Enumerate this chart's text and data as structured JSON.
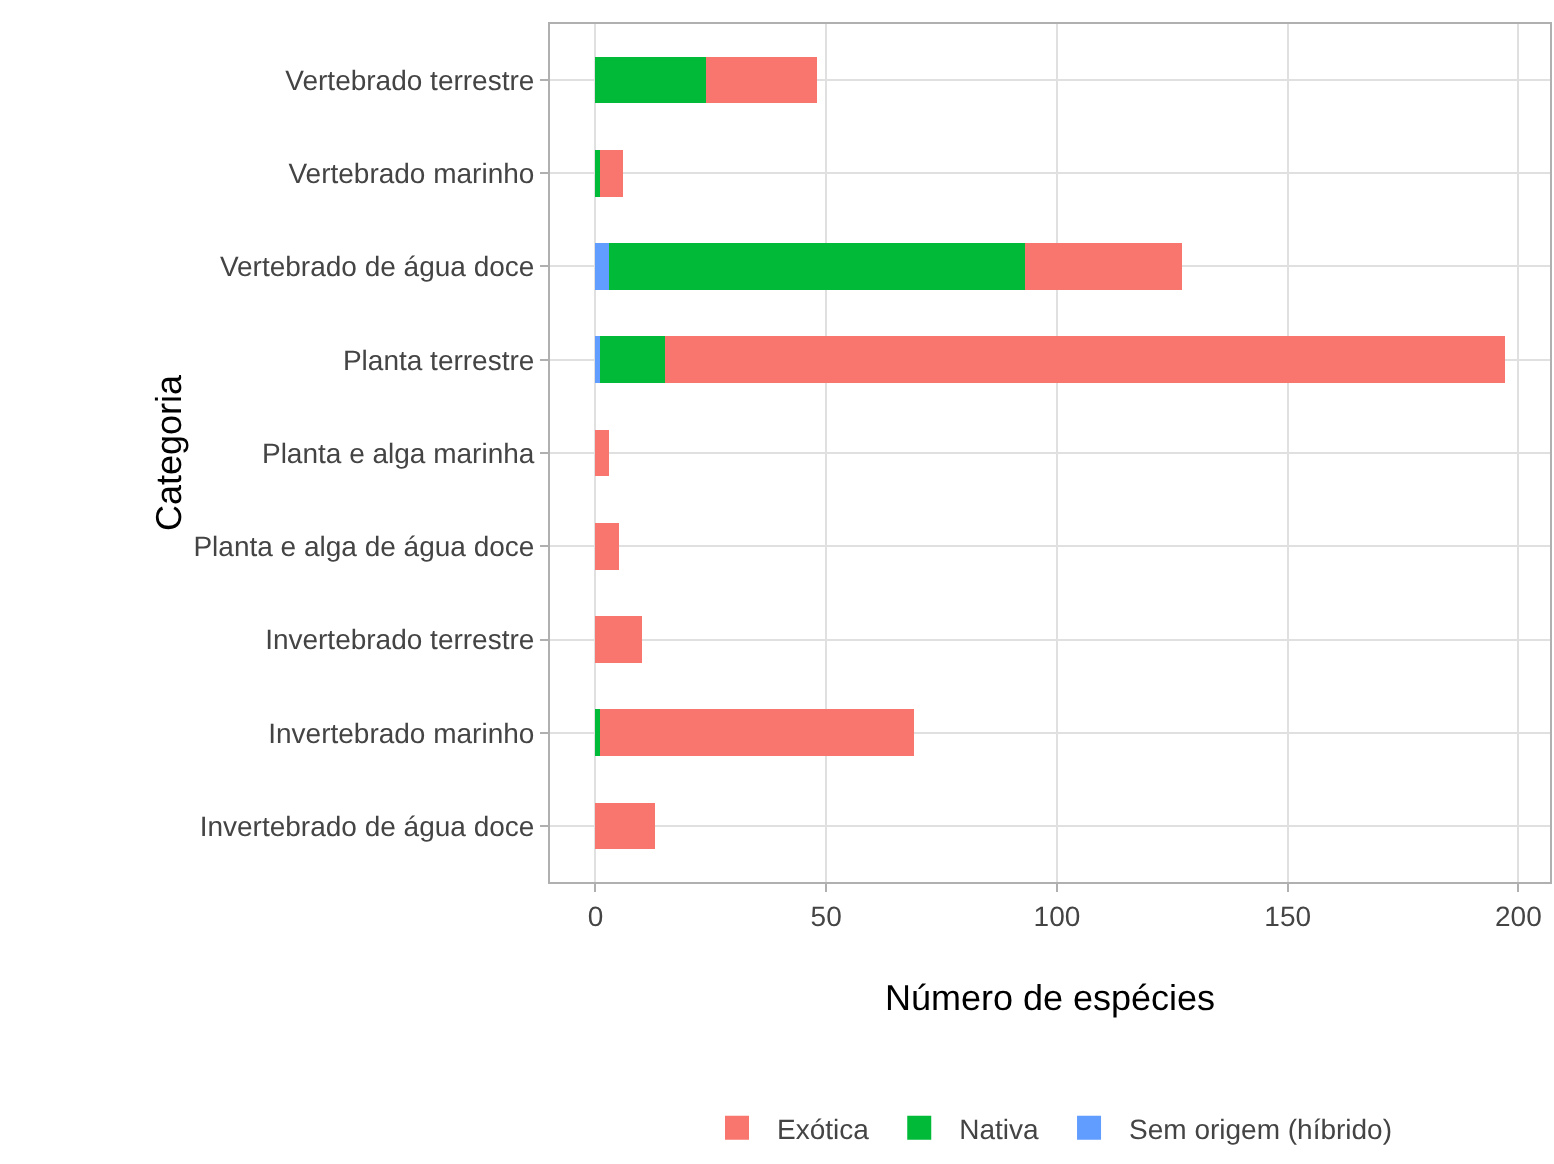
{
  "chart_data": {
    "type": "bar",
    "orientation": "horizontal",
    "stacked": true,
    "ylabel": "Categoria",
    "xlabel": "Número de espécies",
    "categories": [
      "Vertebrado terrestre",
      "Vertebrado marinho",
      "Vertebrado de água doce",
      "Planta terrestre",
      "Planta e alga marinha",
      "Planta e alga de água doce",
      "Invertebrado terrestre",
      "Invertebrado marinho",
      "Invertebrado de água doce"
    ],
    "series": [
      {
        "name": "Sem origem (híbrido)",
        "color": "#619cff",
        "values": [
          0,
          0,
          3,
          1,
          0,
          0,
          0,
          0,
          0
        ]
      },
      {
        "name": "Nativa",
        "color": "#00ba38",
        "values": [
          24,
          1,
          90,
          14,
          0,
          0,
          0,
          1,
          0
        ]
      },
      {
        "name": "Exótica",
        "color": "#f8766d",
        "values": [
          24,
          5,
          34,
          182,
          3,
          5,
          10,
          68,
          13
        ]
      }
    ],
    "xlim": [
      -9.85,
      206.85
    ],
    "xticks": [
      0,
      50,
      100,
      150,
      200
    ],
    "grid": true,
    "legend": "bottom"
  }
}
